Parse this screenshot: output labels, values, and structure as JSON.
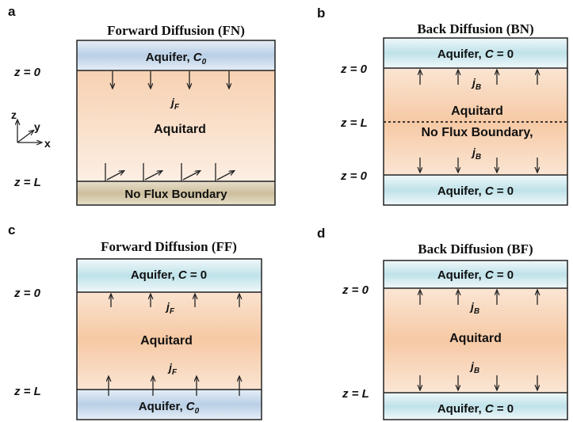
{
  "panels": {
    "a": {
      "label": "a",
      "title": "Forward Diffusion (FN)",
      "top_layer": {
        "text": "Aquifer, ",
        "italic": "C",
        "sub": "0"
      },
      "z_top": "z = 0",
      "z_bottom": "z = L",
      "flux": {
        "main": "j",
        "sub": "F"
      },
      "aquitard": "Aquitard",
      "bottom_layer": "No Flux Boundary",
      "axes": {
        "z": "z",
        "y": "y",
        "x": "x"
      }
    },
    "b": {
      "label": "b",
      "title": "Back Diffusion (BN)",
      "top_layer": {
        "text": "Aquifer, ",
        "italic": "C",
        "rest": " = 0"
      },
      "z_top": "z = 0",
      "z_mid": "z = L",
      "z_bottom": "z = 0",
      "flux_top": {
        "main": "j",
        "sub": "B"
      },
      "flux_bottom": {
        "main": "j",
        "sub": "B"
      },
      "aquitard": "Aquitard",
      "mid_boundary": "No Flux Boundary,",
      "bottom_layer": {
        "text": "Aquifer, ",
        "italic": "C",
        "rest": " = 0"
      }
    },
    "c": {
      "label": "c",
      "title": "Forward Diffusion (FF)",
      "top_layer": {
        "text": "Aquifer, ",
        "italic": "C",
        "rest": " = 0"
      },
      "z_top": "z = 0",
      "z_bottom": "z = L",
      "flux_top": {
        "main": "j",
        "sub": "F"
      },
      "flux_bottom": {
        "main": "j",
        "sub": "F"
      },
      "aquitard": "Aquitard",
      "bottom_layer": {
        "text": "Aquifer, ",
        "italic": "C",
        "sub": "0"
      }
    },
    "d": {
      "label": "d",
      "title": "Back Diffusion (BF)",
      "top_layer": {
        "text": "Aquifer, ",
        "italic": "C",
        "rest": " = 0"
      },
      "z_top": "z = 0",
      "z_bottom": "z = L",
      "flux_top": {
        "main": "j",
        "sub": "B"
      },
      "flux_bottom": {
        "main": "j",
        "sub": "B"
      },
      "aquitard": "Aquitard",
      "bottom_layer": {
        "text": "Aquifer, ",
        "italic": "C",
        "rest": " = 0"
      }
    }
  },
  "colors": {
    "aquifer_blue": "#bcd3e8",
    "aquifer_cyan": "#c3e4ea",
    "aquitard_peach": "#f6c9a4",
    "no_flux_tan": "#cfc3a3"
  }
}
